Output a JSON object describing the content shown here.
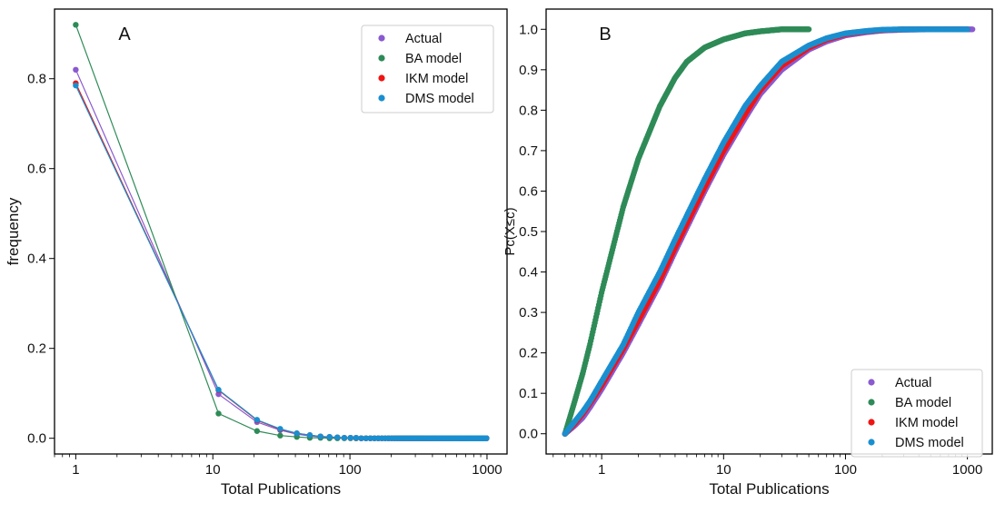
{
  "colors": {
    "actual": "#8a5ad0",
    "ba": "#2e8b57",
    "ikm": "#f01414",
    "dms": "#1a8fd0"
  },
  "chart_data": [
    {
      "panel_label": "A",
      "type": "line",
      "xscale": "log",
      "xlim": [
        0.7,
        1400
      ],
      "ylim": [
        -0.035,
        0.955
      ],
      "xticks": [
        1,
        10,
        100,
        1000
      ],
      "xtick_labels": [
        "1",
        "10",
        "100",
        "1000"
      ],
      "yticks": [
        0.0,
        0.2,
        0.4,
        0.6,
        0.8
      ],
      "ytick_labels": [
        "0.0",
        "0.2",
        "0.4",
        "0.6",
        "0.8"
      ],
      "xlabel": "Total Publications",
      "ylabel": "frequency",
      "legend_position": "top-right",
      "x": [
        1,
        11,
        21,
        31,
        41,
        51,
        61,
        71,
        81,
        91,
        101,
        111,
        121,
        131,
        141,
        151,
        161,
        171,
        181,
        191,
        201,
        211,
        221,
        231,
        241,
        251,
        261,
        271,
        281,
        291,
        301,
        311,
        321,
        331,
        341,
        351,
        361,
        371,
        381,
        391,
        401,
        411,
        421,
        431,
        441,
        451,
        461,
        471,
        481,
        491,
        501,
        511,
        521,
        531,
        541,
        551,
        561,
        571,
        581,
        591,
        601,
        611,
        621,
        631,
        641,
        651,
        661,
        671,
        681,
        691,
        701,
        711,
        721,
        731,
        741,
        751,
        761,
        771,
        781,
        791,
        801,
        811,
        821,
        831,
        841,
        851,
        861,
        871,
        881,
        891,
        901,
        911,
        921,
        931,
        941,
        951,
        961,
        971,
        981,
        991
      ],
      "series": [
        {
          "name": "Actual",
          "color_key": "actual",
          "values": [
            0.82,
            0.098,
            0.036,
            0.018,
            0.009,
            0.005,
            0.003,
            0.002,
            0.001,
            0.001,
            0.001,
            0.0,
            0.0,
            0.0,
            0.0,
            0.0,
            0.0,
            0.0,
            0.0,
            0.0,
            0.0,
            0.0,
            0.0,
            0.0,
            0.0,
            0.0,
            0.0,
            0.0,
            0.0,
            0.0,
            0.0,
            0.0,
            0.0,
            0.0,
            0.0,
            0.0,
            0.0,
            0.0,
            0.0,
            0.0,
            0.0,
            0.0,
            0.0,
            0.0,
            0.0,
            0.0,
            0.0,
            0.0,
            0.0,
            0.0,
            0.0,
            0.0,
            0.0,
            0.0,
            0.0,
            0.0,
            0.0,
            0.0,
            0.0,
            0.0,
            0.0,
            0.0,
            0.0,
            0.0,
            0.0,
            0.0,
            0.0,
            0.0,
            0.0,
            0.0,
            0.0,
            0.0,
            0.0,
            0.0,
            0.0,
            0.0,
            0.0,
            0.0,
            0.0,
            0.0,
            0.0,
            0.0,
            0.0,
            0.0,
            0.0,
            0.0,
            0.0,
            0.0,
            0.0,
            0.0,
            0.0,
            0.0,
            0.0,
            0.0,
            0.0,
            0.0,
            0.0,
            0.0,
            0.0,
            0.0
          ]
        },
        {
          "name": "BA model",
          "color_key": "ba",
          "values": [
            0.92,
            0.055,
            0.016,
            0.006,
            0.003,
            0.001,
            0.001,
            0.0,
            0.0,
            0.0,
            0.0,
            0.0,
            0.0,
            0.0,
            0.0,
            0.0,
            0.0,
            0.0,
            0.0,
            0.0,
            0.0,
            0.0,
            0.0,
            0.0,
            0.0,
            0.0,
            0.0,
            0.0,
            0.0,
            0.0,
            0.0,
            0.0,
            0.0,
            0.0,
            0.0,
            0.0,
            0.0,
            0.0,
            0.0,
            0.0,
            0.0,
            0.0,
            0.0,
            0.0,
            0.0,
            0.0,
            0.0,
            0.0,
            0.0,
            0.0,
            0.0,
            0.0,
            0.0,
            0.0,
            0.0,
            0.0,
            0.0,
            0.0,
            0.0,
            0.0,
            0.0,
            0.0,
            0.0,
            0.0,
            0.0,
            0.0,
            0.0,
            0.0,
            0.0,
            0.0,
            0.0,
            0.0,
            0.0,
            0.0,
            0.0,
            0.0,
            0.0,
            0.0,
            0.0,
            0.0,
            0.0,
            0.0,
            0.0,
            0.0,
            0.0,
            0.0,
            0.0,
            0.0,
            0.0,
            0.0,
            0.0,
            0.0,
            0.0,
            0.0,
            0.0,
            0.0,
            0.0,
            0.0,
            0.0,
            0.0
          ]
        },
        {
          "name": "IKM model",
          "color_key": "ikm",
          "values": [
            0.79,
            0.107,
            0.04,
            0.02,
            0.011,
            0.007,
            0.004,
            0.003,
            0.002,
            0.001,
            0.001,
            0.001,
            0.0,
            0.0,
            0.0,
            0.0,
            0.0,
            0.0,
            0.0,
            0.0,
            0.0,
            0.0,
            0.0,
            0.0,
            0.0,
            0.0,
            0.0,
            0.0,
            0.0,
            0.0,
            0.0,
            0.0,
            0.0,
            0.0,
            0.0,
            0.0,
            0.0,
            0.0,
            0.0,
            0.0,
            0.0,
            0.0,
            0.0,
            0.0,
            0.0,
            0.0,
            0.0,
            0.0,
            0.0,
            0.0,
            0.0,
            0.0,
            0.0,
            0.0,
            0.0,
            0.0,
            0.0,
            0.0,
            0.0,
            0.0,
            0.0,
            0.0,
            0.0,
            0.0,
            0.0,
            0.0,
            0.0,
            0.0,
            0.0,
            0.0,
            0.0,
            0.0,
            0.0,
            0.0,
            0.0,
            0.0,
            0.0,
            0.0,
            0.0,
            0.0,
            0.0,
            0.0,
            0.0,
            0.0,
            0.0,
            0.0,
            0.0,
            0.0,
            0.0,
            0.0,
            0.0,
            0.0,
            0.0,
            0.0,
            0.0,
            0.0,
            0.0,
            0.0,
            0.0,
            0.0
          ]
        },
        {
          "name": "DMS model",
          "color_key": "dms",
          "values": [
            0.785,
            0.108,
            0.041,
            0.021,
            0.011,
            0.007,
            0.004,
            0.003,
            0.002,
            0.001,
            0.001,
            0.001,
            0.0,
            0.0,
            0.0,
            0.0,
            0.0,
            0.0,
            0.0,
            0.0,
            0.0,
            0.0,
            0.0,
            0.0,
            0.0,
            0.0,
            0.0,
            0.0,
            0.0,
            0.0,
            0.0,
            0.0,
            0.0,
            0.0,
            0.0,
            0.0,
            0.0,
            0.0,
            0.0,
            0.0,
            0.0,
            0.0,
            0.0,
            0.0,
            0.0,
            0.0,
            0.0,
            0.0,
            0.0,
            0.0,
            0.0,
            0.0,
            0.0,
            0.0,
            0.0,
            0.0,
            0.0,
            0.0,
            0.0,
            0.0,
            0.0,
            0.0,
            0.0,
            0.0,
            0.0,
            0.0,
            0.0,
            0.0,
            0.0,
            0.0,
            0.0,
            0.0,
            0.0,
            0.0,
            0.0,
            0.0,
            0.0,
            0.0,
            0.0,
            0.0,
            0.0,
            0.0,
            0.0,
            0.0,
            0.0,
            0.0,
            0.0,
            0.0,
            0.0,
            0.0,
            0.0,
            0.0,
            0.0,
            0.0,
            0.0,
            0.0,
            0.0,
            0.0,
            0.0,
            0.0
          ]
        }
      ]
    },
    {
      "panel_label": "B",
      "type": "scatter",
      "xscale": "log",
      "xlim": [
        0.35,
        1600
      ],
      "ylim": [
        -0.05,
        1.05
      ],
      "xticks": [
        1,
        10,
        100,
        1000
      ],
      "xtick_labels": [
        "1",
        "10",
        "100",
        "1000"
      ],
      "yticks": [
        0.0,
        0.1,
        0.2,
        0.3,
        0.4,
        0.5,
        0.6,
        0.7,
        0.8,
        0.9,
        1.0
      ],
      "ytick_labels": [
        "0.0",
        "0.1",
        "0.2",
        "0.3",
        "0.4",
        "0.5",
        "0.6",
        "0.7",
        "0.8",
        "0.9",
        "1.0"
      ],
      "xlabel": "Total Publications",
      "ylabel": "Pc(X≤c)",
      "legend_position": "bottom-right",
      "series": [
        {
          "name": "Actual",
          "color_key": "actual",
          "points": [
            [
              0.5,
              0.0
            ],
            [
              0.6,
              0.02
            ],
            [
              0.7,
              0.04
            ],
            [
              0.8,
              0.065
            ],
            [
              1.0,
              0.11
            ],
            [
              1.5,
              0.2
            ],
            [
              2,
              0.27
            ],
            [
              3,
              0.37
            ],
            [
              4,
              0.45
            ],
            [
              5,
              0.51
            ],
            [
              7,
              0.6
            ],
            [
              10,
              0.69
            ],
            [
              15,
              0.78
            ],
            [
              20,
              0.84
            ],
            [
              30,
              0.9
            ],
            [
              50,
              0.95
            ],
            [
              70,
              0.97
            ],
            [
              100,
              0.985
            ],
            [
              150,
              0.993
            ],
            [
              200,
              0.997
            ],
            [
              300,
              0.999
            ],
            [
              500,
              1.0
            ],
            [
              700,
              1.0
            ],
            [
              1100,
              1.0
            ]
          ]
        },
        {
          "name": "BA model",
          "color_key": "ba",
          "points": [
            [
              0.5,
              0.0
            ],
            [
              0.6,
              0.08
            ],
            [
              0.7,
              0.15
            ],
            [
              0.8,
              0.22
            ],
            [
              1.0,
              0.35
            ],
            [
              1.5,
              0.56
            ],
            [
              2,
              0.68
            ],
            [
              3,
              0.81
            ],
            [
              4,
              0.88
            ],
            [
              5,
              0.92
            ],
            [
              7,
              0.955
            ],
            [
              10,
              0.975
            ],
            [
              15,
              0.99
            ],
            [
              20,
              0.995
            ],
            [
              30,
              1.0
            ],
            [
              35,
              1.0
            ],
            [
              45,
              1.0
            ],
            [
              50,
              1.0
            ]
          ]
        },
        {
          "name": "IKM model",
          "color_key": "ikm",
          "points": [
            [
              0.5,
              0.0
            ],
            [
              0.6,
              0.025
            ],
            [
              0.7,
              0.05
            ],
            [
              0.8,
              0.075
            ],
            [
              1.0,
              0.12
            ],
            [
              1.5,
              0.21
            ],
            [
              2,
              0.28
            ],
            [
              3,
              0.38
            ],
            [
              4,
              0.46
            ],
            [
              5,
              0.52
            ],
            [
              7,
              0.61
            ],
            [
              10,
              0.7
            ],
            [
              15,
              0.79
            ],
            [
              20,
              0.85
            ],
            [
              30,
              0.91
            ],
            [
              50,
              0.955
            ],
            [
              70,
              0.975
            ],
            [
              100,
              0.988
            ],
            [
              150,
              0.995
            ],
            [
              200,
              0.998
            ],
            [
              300,
              1.0
            ],
            [
              500,
              1.0
            ],
            [
              700,
              1.0
            ],
            [
              1000,
              1.0
            ]
          ]
        },
        {
          "name": "DMS model",
          "color_key": "dms",
          "points": [
            [
              0.5,
              0.0
            ],
            [
              0.6,
              0.03
            ],
            [
              0.7,
              0.055
            ],
            [
              0.8,
              0.08
            ],
            [
              1.0,
              0.13
            ],
            [
              1.5,
              0.22
            ],
            [
              2,
              0.3
            ],
            [
              3,
              0.4
            ],
            [
              4,
              0.48
            ],
            [
              5,
              0.54
            ],
            [
              7,
              0.63
            ],
            [
              10,
              0.72
            ],
            [
              15,
              0.81
            ],
            [
              20,
              0.86
            ],
            [
              30,
              0.92
            ],
            [
              50,
              0.96
            ],
            [
              70,
              0.978
            ],
            [
              100,
              0.99
            ],
            [
              150,
              0.996
            ],
            [
              200,
              0.999
            ],
            [
              300,
              1.0
            ],
            [
              500,
              1.0
            ],
            [
              700,
              1.0
            ],
            [
              1000,
              1.0
            ]
          ]
        }
      ]
    }
  ]
}
